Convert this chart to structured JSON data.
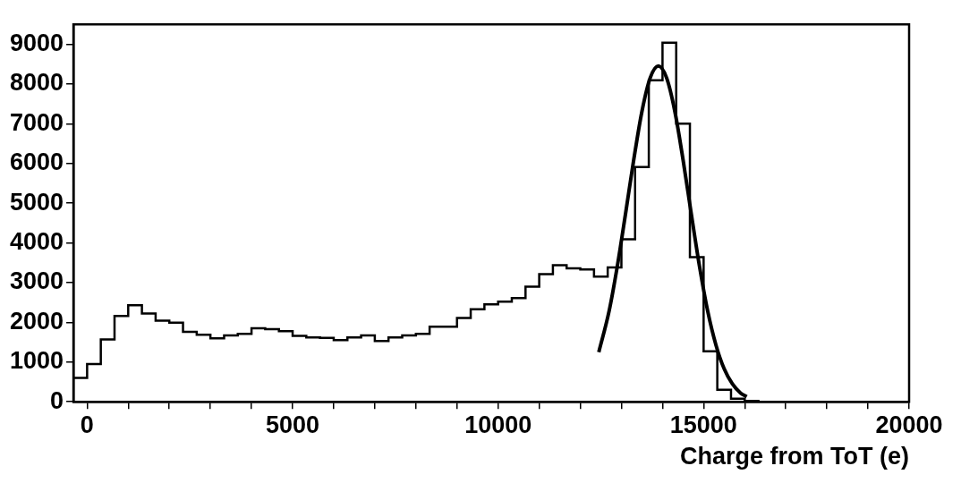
{
  "chart_data": {
    "type": "histogram",
    "xlabel": "Charge from ToT (e)",
    "color": "#000000",
    "bins": [
      -333,
      0,
      333,
      667,
      1000,
      1333,
      1667,
      2000,
      2333,
      2667,
      3000,
      3333,
      3667,
      4000,
      4333,
      4667,
      5000,
      5333,
      5667,
      6000,
      6333,
      6667,
      7000,
      7333,
      7667,
      8000,
      8333,
      8667,
      9000,
      9333,
      9667,
      10000,
      10333,
      10667,
      11000,
      11333,
      11667,
      12000,
      12333,
      12667,
      13000,
      13333,
      13667,
      14000,
      14333,
      14667,
      15000,
      15333,
      15667,
      16000,
      16333,
      16667,
      17000,
      17333,
      17667,
      18000,
      18333,
      18667,
      19000,
      19333,
      19667,
      20000
    ],
    "values": [
      600,
      950,
      1570,
      2160,
      2430,
      2220,
      2040,
      1990,
      1760,
      1690,
      1600,
      1670,
      1710,
      1850,
      1830,
      1780,
      1660,
      1620,
      1610,
      1550,
      1620,
      1670,
      1530,
      1620,
      1670,
      1710,
      1890,
      1890,
      2110,
      2330,
      2450,
      2520,
      2610,
      2900,
      3210,
      3440,
      3360,
      3330,
      3150,
      3380,
      4090,
      5910,
      8090,
      9040,
      7000,
      3640,
      1270,
      300,
      80,
      20,
      0,
      0,
      0,
      0,
      0,
      0,
      0,
      0,
      0,
      0,
      0
    ],
    "series": [
      {
        "type": "line",
        "color": "#000000",
        "x": [
          12450,
          12700,
          12900,
          13100,
          13300,
          13500,
          13700,
          13900,
          14100,
          14300,
          14500,
          14700,
          14900,
          15100,
          15300,
          15500,
          15700,
          15900,
          16050
        ],
        "values": [
          1250,
          2280,
          3410,
          4730,
          6090,
          7310,
          8150,
          8450,
          8150,
          7310,
          6090,
          4730,
          3410,
          2280,
          1430,
          830,
          450,
          220,
          130
        ]
      }
    ],
    "xlim": [
      -333,
      20000
    ],
    "ylim": [
      0,
      9500
    ],
    "xticks": [
      0,
      {
        "value": 1000,
        "label": null
      },
      {
        "value": 2000,
        "label": null
      },
      {
        "value": 3000,
        "label": null
      },
      {
        "value": 4000,
        "label": null
      },
      5000,
      {
        "value": 6000,
        "label": null
      },
      {
        "value": 7000,
        "label": null
      },
      {
        "value": 8000,
        "label": null
      },
      {
        "value": 9000,
        "label": null
      },
      10000,
      {
        "value": 11000,
        "label": null
      },
      {
        "value": 12000,
        "label": null
      },
      {
        "value": 13000,
        "label": null
      },
      {
        "value": 14000,
        "label": null
      },
      15000,
      {
        "value": 16000,
        "label": null
      },
      {
        "value": 17000,
        "label": null
      },
      {
        "value": 18000,
        "label": null
      },
      {
        "value": 19000,
        "label": null
      },
      20000
    ],
    "yticks": [
      0,
      1000,
      2000,
      3000,
      4000,
      5000,
      6000,
      7000,
      8000,
      9000
    ],
    "grid": false,
    "legend": false
  }
}
